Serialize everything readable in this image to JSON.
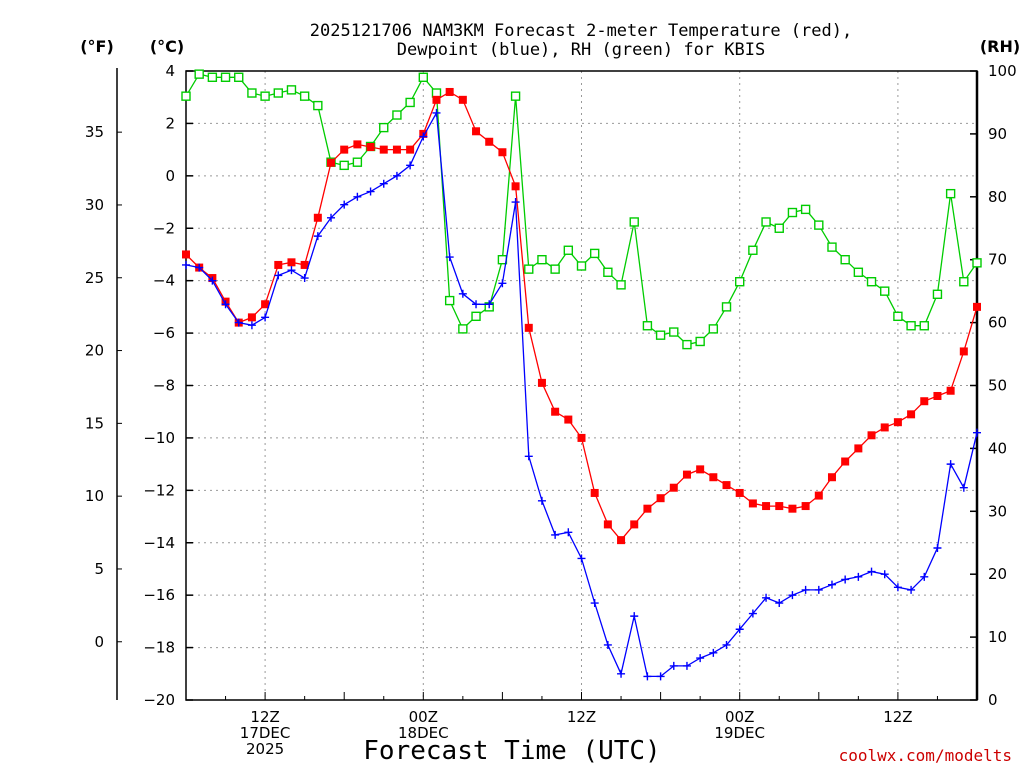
{
  "title_line1": "2025121706 NAM3KM Forecast 2-meter Temperature (red),",
  "title_line2": "Dewpoint (blue), RH (green) for KBIS",
  "credit": "coolwx.com/modelts",
  "chart_data": {
    "type": "line",
    "title": "2025121706 NAM3KM Forecast 2-meter Temperature (red), Dewpoint (blue), RH (green) for KBIS",
    "xlabel": "Forecast Time (UTC)",
    "x_units": "hours since 2025-12-17 06Z",
    "x_range": [
      0,
      60
    ],
    "x_ticks": [
      {
        "x": 6,
        "lines": [
          "12Z",
          "17DEC",
          "2025"
        ]
      },
      {
        "x": 18,
        "lines": [
          "00Z",
          "18DEC"
        ]
      },
      {
        "x": 30,
        "lines": [
          "12Z"
        ]
      },
      {
        "x": 42,
        "lines": [
          "00Z",
          "19DEC"
        ]
      },
      {
        "x": 54,
        "lines": [
          "12Z"
        ]
      }
    ],
    "y_left_label": "(°C)",
    "y_left_range": [
      -20,
      4
    ],
    "y_left_ticks": [
      4,
      2,
      0,
      -2,
      -4,
      -6,
      -8,
      -10,
      -12,
      -14,
      -16,
      -18,
      -20
    ],
    "y_left_tick_labels": [
      "4",
      "2",
      "0",
      "−2",
      "−4",
      "−6",
      "−8",
      "−10",
      "−12",
      "−14",
      "−16",
      "−18",
      "−20"
    ],
    "y_far_left_label": "(°F)",
    "y_far_left_ticks": [
      35,
      30,
      25,
      20,
      15,
      10,
      5,
      0
    ],
    "y_right_label": "(RH)",
    "y_right_range": [
      0,
      100
    ],
    "y_right_ticks": [
      100,
      90,
      80,
      70,
      60,
      50,
      40,
      30,
      20,
      10,
      0
    ],
    "grid": true,
    "series": [
      {
        "name": "Temperature",
        "color": "#ff0000",
        "marker": "square-filled",
        "axis": "left",
        "x": [
          0,
          1,
          2,
          3,
          4,
          5,
          6,
          7,
          8,
          9,
          10,
          11,
          12,
          13,
          14,
          15,
          16,
          17,
          18,
          19,
          20,
          21,
          22,
          23,
          24,
          25,
          26,
          27,
          28,
          29,
          30,
          31,
          32,
          33,
          34,
          35,
          36,
          37,
          38,
          39,
          40,
          41,
          42,
          43,
          44,
          45,
          46,
          47,
          48,
          49,
          50,
          51,
          52,
          53,
          54,
          55,
          56,
          57,
          58,
          59,
          60
        ],
        "values": [
          -3.0,
          -3.5,
          -3.9,
          -4.8,
          -5.6,
          -5.4,
          -4.9,
          -3.4,
          -3.3,
          -3.4,
          -1.6,
          0.5,
          1.0,
          1.2,
          1.1,
          1.0,
          1.0,
          1.0,
          1.6,
          2.9,
          3.2,
          2.9,
          1.7,
          1.3,
          0.9,
          -0.4,
          -5.8,
          -7.9,
          -9.0,
          -9.3,
          -10.0,
          -12.1,
          -13.3,
          -13.9,
          -13.3,
          -12.7,
          -12.3,
          -11.9,
          -11.4,
          -11.2,
          -11.5,
          -11.8,
          -12.1,
          -12.5,
          -12.6,
          -12.6,
          -12.7,
          -12.6,
          -12.2,
          -11.5,
          -10.9,
          -10.4,
          -9.9,
          -9.6,
          -9.4,
          -9.1,
          -8.6,
          -8.4,
          -8.2,
          -6.7,
          -5.0
        ]
      },
      {
        "name": "Dewpoint",
        "color": "#0000ff",
        "marker": "plus",
        "axis": "left",
        "x": [
          0,
          1,
          2,
          3,
          4,
          5,
          6,
          7,
          8,
          9,
          10,
          11,
          12,
          13,
          14,
          15,
          16,
          17,
          18,
          19,
          20,
          21,
          22,
          23,
          24,
          25,
          26,
          27,
          28,
          29,
          30,
          31,
          32,
          33,
          34,
          35,
          36,
          37,
          38,
          39,
          40,
          41,
          42,
          43,
          44,
          45,
          46,
          47,
          48,
          49,
          50,
          51,
          52,
          53,
          54,
          55,
          56,
          57,
          58,
          59,
          60
        ],
        "values": [
          -3.4,
          -3.5,
          -4.0,
          -4.9,
          -5.6,
          -5.7,
          -5.4,
          -3.8,
          -3.6,
          -3.9,
          -2.3,
          -1.6,
          -1.1,
          -0.8,
          -0.6,
          -0.3,
          0.0,
          0.4,
          1.5,
          2.4,
          -3.1,
          -4.5,
          -4.9,
          -4.9,
          -4.1,
          -1.0,
          -10.7,
          -12.4,
          -13.7,
          -13.6,
          -14.6,
          -16.3,
          -17.9,
          -19.0,
          -16.8,
          -19.1,
          -19.1,
          -18.7,
          -18.7,
          -18.4,
          -18.2,
          -17.9,
          -17.3,
          -16.7,
          -16.1,
          -16.3,
          -16.0,
          -15.8,
          -15.8,
          -15.6,
          -15.4,
          -15.3,
          -15.1,
          -15.2,
          -15.7,
          -15.8,
          -15.3,
          -14.2,
          -11.0,
          -11.9,
          -9.8
        ]
      },
      {
        "name": "RH",
        "color": "#00cc00",
        "marker": "square-open",
        "axis": "right",
        "x": [
          0,
          1,
          2,
          3,
          4,
          5,
          6,
          7,
          8,
          9,
          10,
          11,
          12,
          13,
          14,
          15,
          16,
          17,
          18,
          19,
          20,
          21,
          22,
          23,
          24,
          25,
          26,
          27,
          28,
          29,
          30,
          31,
          32,
          33,
          34,
          35,
          36,
          37,
          38,
          39,
          40,
          41,
          42,
          43,
          44,
          45,
          46,
          47,
          48,
          49,
          50,
          51,
          52,
          53,
          54,
          55,
          56,
          57,
          58,
          59,
          60
        ],
        "values": [
          96,
          99.5,
          99,
          99,
          99,
          96.5,
          96,
          96.5,
          97,
          96,
          94.5,
          85.5,
          85,
          85.5,
          88,
          91,
          93,
          95,
          99,
          96.5,
          63.5,
          59,
          61,
          62.5,
          70,
          96,
          68.5,
          70,
          68.5,
          71.5,
          69,
          71,
          68,
          66,
          76,
          59.5,
          58,
          58.5,
          56.5,
          57,
          59,
          62.5,
          66.5,
          71.5,
          76,
          75,
          77.5,
          78,
          75.5,
          72,
          70,
          68,
          66.5,
          65,
          61,
          59.5,
          59.5,
          64.5,
          80.5,
          66.5,
          69.5
        ]
      }
    ]
  }
}
